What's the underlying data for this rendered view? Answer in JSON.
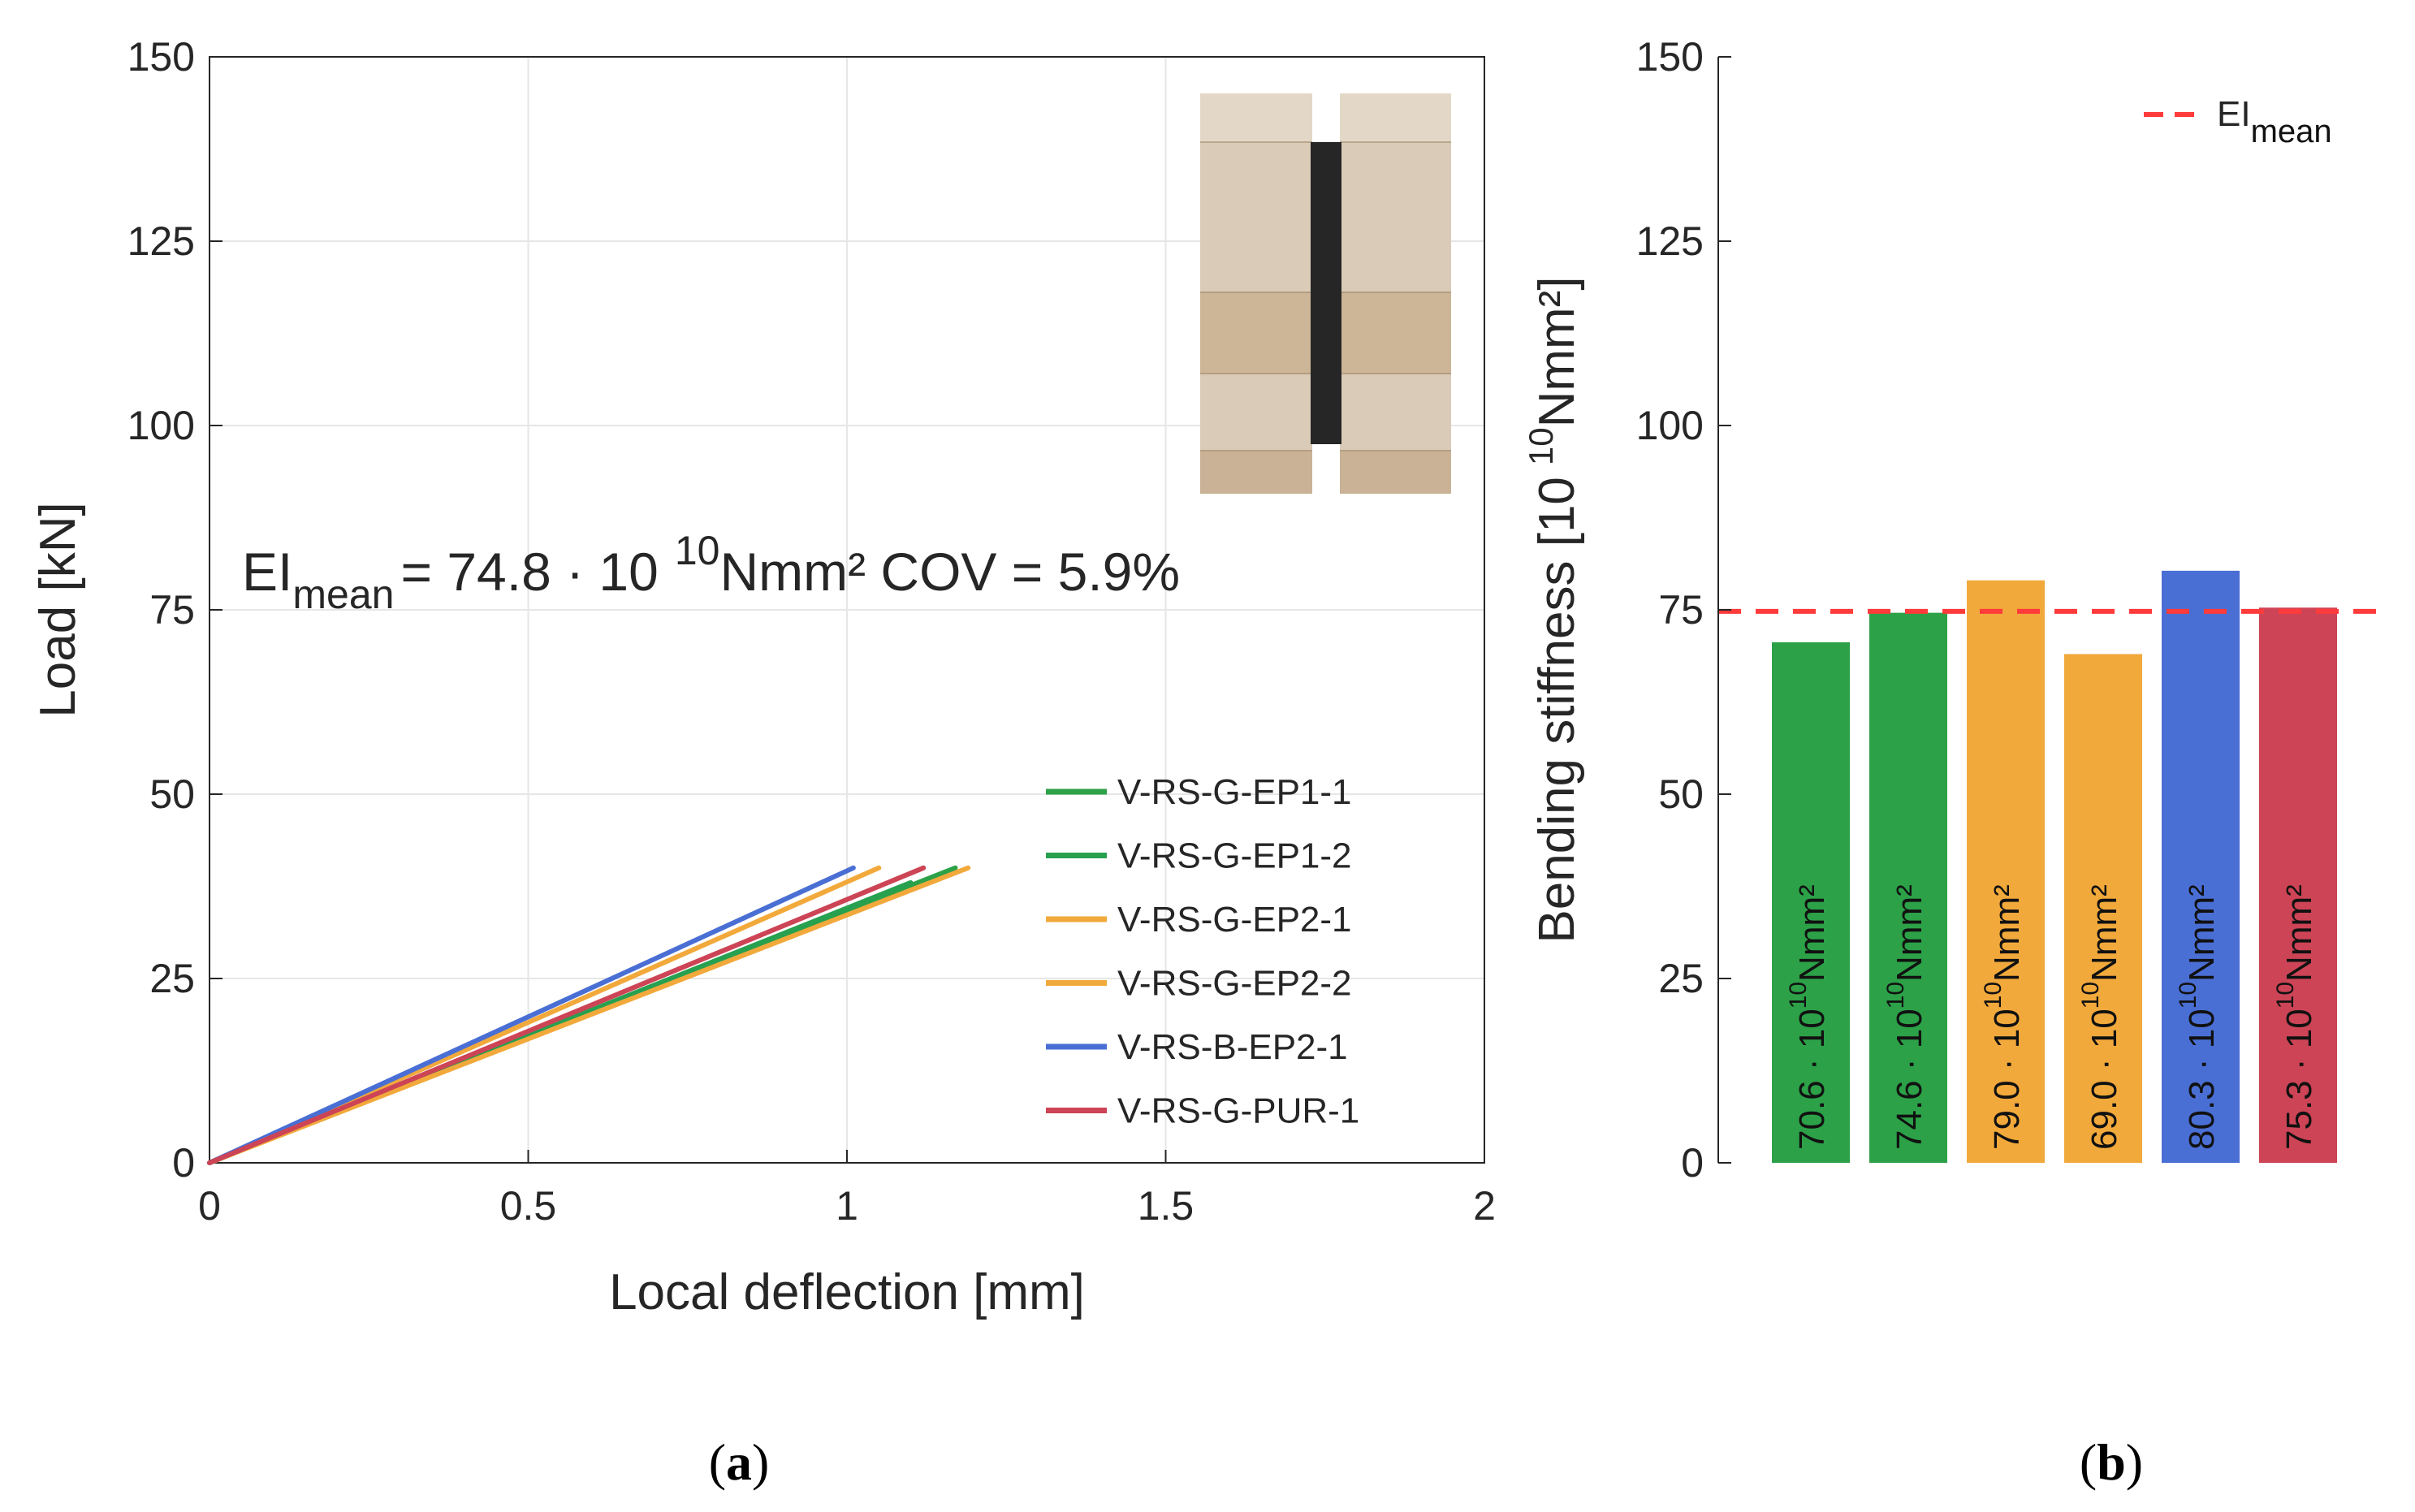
{
  "chart_data": [
    {
      "type": "line",
      "panel_label": "(a)",
      "xlabel": "Local deflection [mm]",
      "ylabel": "Load [kN]",
      "xlim": [
        0,
        2
      ],
      "ylim": [
        0,
        150
      ],
      "xticks": [
        "0",
        "0.5",
        "1",
        "1.5",
        "2"
      ],
      "yticks": [
        "0",
        "25",
        "50",
        "75",
        "100",
        "125",
        "150"
      ],
      "grid": true,
      "legend_position": "bottom-right",
      "annotation": {
        "main": "EI",
        "sub": "mean",
        "mid": "= 74.8 · 10",
        "sup": "10",
        "tail": "Nmm² COV = 5.9%"
      },
      "inset": "photo of bonded specimen cross-section",
      "series": [
        {
          "name": "V-RS-G-EP1-1",
          "color": "#2ca148",
          "x": [
            0,
            1.17
          ],
          "y": [
            0,
            40
          ]
        },
        {
          "name": "V-RS-G-EP1-2",
          "color": "#27a050",
          "x": [
            0,
            1.1
          ],
          "y": [
            0,
            38
          ]
        },
        {
          "name": "V-RS-G-EP2-1",
          "color": "#f2a93b",
          "x": [
            0,
            1.05
          ],
          "y": [
            0,
            40
          ]
        },
        {
          "name": "V-RS-G-EP2-2",
          "color": "#f2a93b",
          "x": [
            0,
            1.19
          ],
          "y": [
            0,
            40
          ]
        },
        {
          "name": "V-RS-B-EP2-1",
          "color": "#4a6fd4",
          "x": [
            0,
            1.01
          ],
          "y": [
            0,
            40
          ]
        },
        {
          "name": "V-RS-G-PUR-1",
          "color": "#cc4455",
          "x": [
            0,
            1.12
          ],
          "y": [
            0,
            40
          ]
        }
      ]
    },
    {
      "type": "bar",
      "panel_label": "(b)",
      "ylabel_main": "Bending stiffness [10",
      "ylabel_sup": "10",
      "ylabel_tail": "Nmm²]",
      "ylim": [
        0,
        150
      ],
      "yticks": [
        "0",
        "25",
        "50",
        "75",
        "100",
        "125",
        "150"
      ],
      "legend": {
        "name_main": "EI",
        "name_sub": "mean",
        "position": "top-right"
      },
      "mean_line": {
        "value": 74.8,
        "color": "#ff3b3b"
      },
      "bar_label_sup": "10",
      "bar_label_tail": "Nmm²",
      "bars": [
        {
          "value": 70.6,
          "label": "70.6 · 10",
          "color": "#2ca148"
        },
        {
          "value": 74.6,
          "label": "74.6 · 10",
          "color": "#2ca148"
        },
        {
          "value": 79.0,
          "label": "79.0 · 10",
          "color": "#f2a93b"
        },
        {
          "value": 69.0,
          "label": "69.0 · 10",
          "color": "#f2a93b"
        },
        {
          "value": 80.3,
          "label": "80.3 · 10",
          "color": "#4a6fd4"
        },
        {
          "value": 75.3,
          "label": "75.3 · 10",
          "color": "#cc4455"
        }
      ]
    }
  ]
}
